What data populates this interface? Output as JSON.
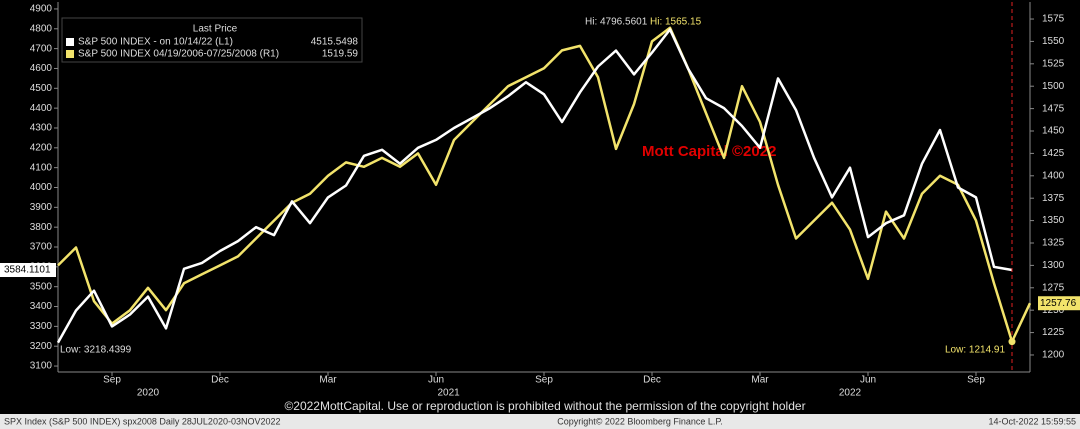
{
  "chart_data": {
    "type": "line",
    "legend_title": "Last Price",
    "categories": [
      null,
      null,
      null,
      "Sep",
      null,
      null,
      null,
      null,
      null,
      "Dec",
      null,
      null,
      null,
      null,
      null,
      "Mar",
      null,
      null,
      null,
      null,
      null,
      "Jun",
      null,
      null,
      null,
      null,
      null,
      "Sep",
      null,
      null,
      null,
      null,
      null,
      "Dec",
      null,
      null,
      null,
      null,
      null,
      "Mar",
      null,
      null,
      null,
      null,
      null,
      "Jun",
      null,
      null,
      null,
      null,
      null,
      "Sep",
      null,
      null,
      null
    ],
    "x_groups": [
      "2020",
      "2021",
      "2022"
    ],
    "series": [
      {
        "name": "S&P 500 INDEX - on 10/14/22 (L1)",
        "legend_value": "4515.5498",
        "color": "#ffffff",
        "axis": "y",
        "values": [
          3218.4399,
          3380,
          3480,
          3300,
          3360,
          3450,
          3290,
          3590,
          3620,
          3680,
          3730,
          3800,
          3760,
          3930,
          3820,
          3950,
          4010,
          4160,
          4190,
          4120,
          4200,
          4240,
          4300,
          4350,
          4400,
          4460,
          4530,
          4470,
          4330,
          4480,
          4610,
          4690,
          4570,
          4680,
          4796.5601,
          4600,
          4450,
          4400,
          4310,
          4200,
          4550,
          4390,
          4150,
          3950,
          4100,
          3750,
          3820,
          3860,
          4120,
          4290,
          4000,
          3950,
          3600,
          3584.1101,
          null
        ]
      },
      {
        "name": "S&P 500 INDEX 04/19/2006-07/25/2008 (R1)",
        "legend_value": "1519.59",
        "color": "#f2e36b",
        "axis": "y2",
        "values": [
          1300,
          1320,
          1260,
          1235,
          1250,
          1275,
          1250,
          1280,
          1290,
          1300,
          1310,
          1330,
          1350,
          1370,
          1380,
          1400,
          1415,
          1410,
          1420,
          1410,
          1425,
          1390,
          1440,
          1460,
          1480,
          1500,
          1510,
          1520,
          1540,
          1545,
          1510,
          1430,
          1480,
          1550,
          1565.15,
          1520,
          1470,
          1420,
          1500,
          1460,
          1390,
          1330,
          1350,
          1370,
          1340,
          1285,
          1360,
          1330,
          1380,
          1400,
          1390,
          1350,
          1280,
          1214.91,
          1257.76
        ]
      }
    ],
    "ylim": [
      3070,
      4935
    ],
    "yticks": [
      3100,
      3200,
      3300,
      3400,
      3500,
      3600,
      3700,
      3800,
      3900,
      4000,
      4100,
      4200,
      4300,
      4400,
      4500,
      4600,
      4700,
      4800,
      4900
    ],
    "y2lim": [
      1181,
      1594
    ],
    "y2ticks": [
      1200,
      1225,
      1250,
      1275,
      1300,
      1325,
      1350,
      1375,
      1400,
      1425,
      1450,
      1475,
      1500,
      1525,
      1550,
      1575
    ],
    "grid": false,
    "annotations": {
      "last_left": "3584.1101",
      "last_right": "1257.76",
      "hi_left": "Hi: 4796.5601",
      "hi_right": "Hi: 1565.15",
      "low_left": "Low: 3218.4399",
      "low_right": "Low: 1214.91",
      "watermark": "Mott Capital ©2022"
    },
    "footer": "©2022MottCapital. Use or reproduction is prohibited without the permission of the copyright holder",
    "status": {
      "left": "SPX Index (S&P 500 INDEX) spx2008  Daily 28JUL2020-03NOV2022",
      "center": "Copyright© 2022 Bloomberg Finance L.P.",
      "right": "14-Oct-2022 15:59:55"
    }
  }
}
